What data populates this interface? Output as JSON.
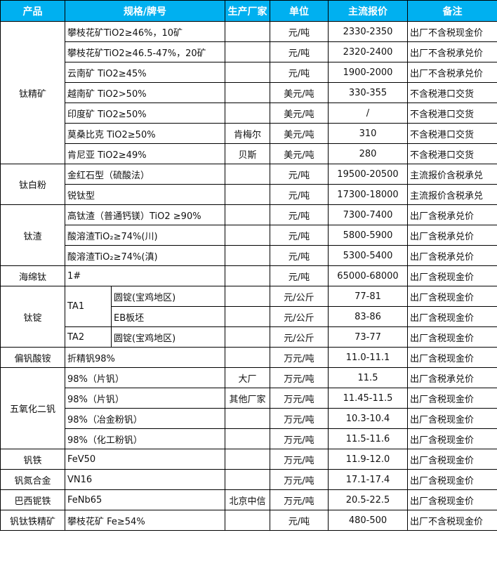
{
  "header": {
    "product": "产品",
    "spec": "规格/牌号",
    "maker": "生产厂家",
    "unit": "单位",
    "price": "主流报价",
    "note": "备注"
  },
  "header_color": "#00b0f0",
  "groups": [
    {
      "product": "钛精矿",
      "rows": [
        {
          "spec": "攀枝花矿TiO2≥46%，10矿",
          "maker": "",
          "unit": "元/吨",
          "price": "2330-2350",
          "note": "出厂不含税现金价"
        },
        {
          "spec": "攀枝花矿TiO2≥46.5-47%，20矿",
          "maker": "",
          "unit": "元/吨",
          "price": "2320-2400",
          "note": "出厂不含税承兑价"
        },
        {
          "spec": "云南矿 TiO2≥45%",
          "maker": "",
          "unit": "元/吨",
          "price": "1900-2000",
          "note": "出厂不含税承兑价"
        },
        {
          "spec": "越南矿 TiO2>50%",
          "maker": "",
          "unit": "美元/吨",
          "price": "330-355",
          "note": "不含税港口交货"
        },
        {
          "spec": "印度矿 TiO2≥50%",
          "maker": "",
          "unit": "美元/吨",
          "price": "/",
          "note": "不含税港口交货"
        },
        {
          "spec": "莫桑比克 TiO2≥50%",
          "maker": "肯梅尔",
          "unit": "美元/吨",
          "price": "310",
          "note": "不含税港口交货"
        },
        {
          "spec": "肯尼亚 TiO2≥49%",
          "maker": "贝斯",
          "unit": "美元/吨",
          "price": "280",
          "note": "不含税港口交货"
        }
      ]
    },
    {
      "product": "钛白粉",
      "rows": [
        {
          "spec": "金红石型（硫酸法）",
          "maker": "",
          "unit": "元/吨",
          "price": "19500-20500",
          "note": "主流报价含税承兑"
        },
        {
          "spec": "锐钛型",
          "maker": "",
          "unit": "元/吨",
          "price": "17300-18000",
          "note": "主流报价含税承兑"
        }
      ]
    },
    {
      "product": "钛渣",
      "rows": [
        {
          "spec": "高钛渣（普通钙镁）TiO2 ≥90%",
          "maker": "",
          "unit": "元/吨",
          "price": "7300-7400",
          "note": "出厂含税承兑价"
        },
        {
          "spec": "酸溶渣TiO₂≥74%(川)",
          "maker": "",
          "unit": "元/吨",
          "price": "5800-5900",
          "note": "出厂含税承兑价"
        },
        {
          "spec": "酸溶渣TiO₂≥74%(滇)",
          "maker": "",
          "unit": "元/吨",
          "price": "5300-5400",
          "note": "出厂含税承兑价"
        }
      ]
    },
    {
      "product": "海绵钛",
      "rows": [
        {
          "spec": "1#",
          "maker": "",
          "unit": "元/吨",
          "price": "65000-68000",
          "note": "出厂含税现金价"
        }
      ]
    },
    {
      "product": "钛锭",
      "rows": [
        {
          "spec": "TA1",
          "spec_rows": 2,
          "sub": "圆锭(宝鸡地区)",
          "maker": "",
          "unit": "元/公斤",
          "price": "77-81",
          "note": "出厂含税现金价"
        },
        {
          "sub": "EB板坯",
          "maker": "",
          "unit": "元/公斤",
          "price": "83-86",
          "note": "出厂含税现金价"
        },
        {
          "spec": "TA2",
          "spec_rows": 1,
          "sub": "圆锭(宝鸡地区)",
          "maker": "",
          "unit": "元/公斤",
          "price": "73-77",
          "note": "出厂含税现金价"
        }
      ]
    },
    {
      "product": "偏钒酸铵",
      "rows": [
        {
          "spec": "折精钒98%",
          "maker": "",
          "unit": "万元/吨",
          "price": "11.0-11.1",
          "note": "出厂含税现金价"
        }
      ]
    },
    {
      "product": "五氧化二钒",
      "rows": [
        {
          "spec": "98%（片钒）",
          "maker": "大厂",
          "unit": "万元/吨",
          "price": "11.5",
          "note": "出厂含税承兑价"
        },
        {
          "spec": "98%（片钒）",
          "maker": "其他厂家",
          "unit": "万元/吨",
          "price": "11.45-11.5",
          "note": "出厂含税现金价"
        },
        {
          "spec": "98%（冶金粉钒）",
          "maker": "",
          "unit": "万元/吨",
          "price": "10.3-10.4",
          "note": "出厂含税现金价"
        },
        {
          "spec": "98%（化工粉钒）",
          "maker": "",
          "unit": "万元/吨",
          "price": "11.5-11.6",
          "note": "出厂含税现金价"
        }
      ]
    },
    {
      "product": "钒铁",
      "rows": [
        {
          "spec": "FeV50",
          "maker": "",
          "unit": "万元/吨",
          "price": "11.9-12.0",
          "note": "出厂含税现金价"
        }
      ]
    },
    {
      "product": "钒氮合金",
      "rows": [
        {
          "spec": "VN16",
          "maker": "",
          "unit": "万元/吨",
          "price": "17.1-17.4",
          "note": "出厂含税现金价"
        }
      ]
    },
    {
      "product": "巴西铌铁",
      "rows": [
        {
          "spec": "FeNb65",
          "maker": "北京中信",
          "unit": "万元/吨",
          "price": "20.5-22.5",
          "note": "出厂含税现金价"
        }
      ]
    },
    {
      "product": "钒钛铁精矿",
      "rows": [
        {
          "spec": "攀枝花矿 Fe≥54%",
          "maker": "",
          "unit": "元/吨",
          "price": "480-500",
          "note": "出厂不含税现金价"
        }
      ]
    }
  ]
}
